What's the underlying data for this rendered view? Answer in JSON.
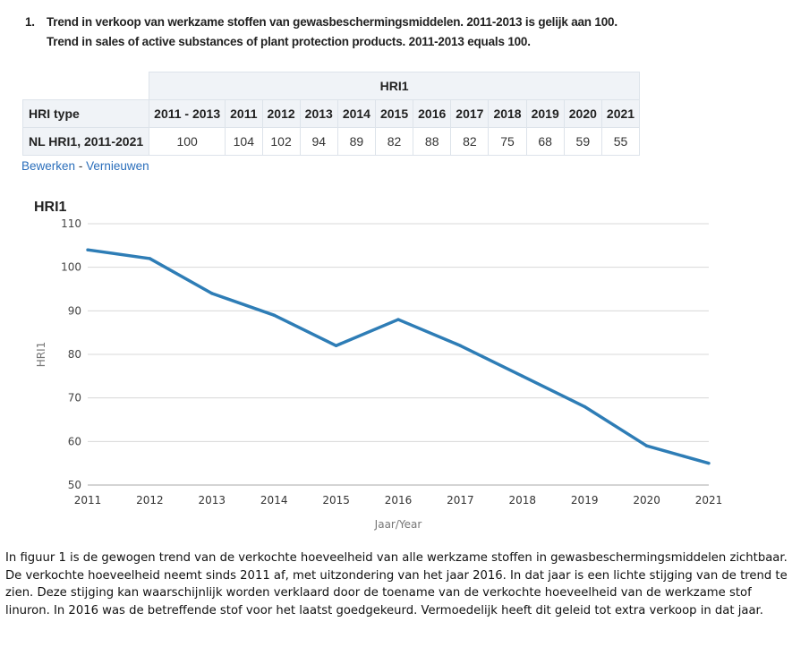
{
  "heading": {
    "number": "1.",
    "line_nl": "Trend in verkoop van werkzame stoffen van gewasbeschermingsmiddelen. 2011-2013 is gelijk aan 100.",
    "line_en": "Trend in sales of active substances of plant protection products. 2011-2013 equals 100."
  },
  "table": {
    "group_header": "HRI1",
    "row_header": "HRI type",
    "columns": [
      "2011 - 2013",
      "2011",
      "2012",
      "2013",
      "2014",
      "2015",
      "2016",
      "2017",
      "2018",
      "2019",
      "2020",
      "2021"
    ],
    "rows": [
      {
        "label": "NL HRI1, 2011-2021",
        "values": [
          "100",
          "104",
          "102",
          "94",
          "89",
          "82",
          "88",
          "82",
          "75",
          "68",
          "59",
          "55"
        ]
      }
    ]
  },
  "links": {
    "edit": "Bewerken",
    "separator": "-",
    "refresh": "Vernieuwen"
  },
  "chart_data": {
    "type": "line",
    "title": "HRI1",
    "xlabel": "Jaar/Year",
    "ylabel": "HRI1",
    "x": [
      2011,
      2012,
      2013,
      2014,
      2015,
      2016,
      2017,
      2018,
      2019,
      2020,
      2021
    ],
    "series": [
      {
        "values": [
          104,
          102,
          94,
          89,
          82,
          88,
          82,
          75,
          68,
          59,
          55
        ],
        "color": "#2e7db6"
      }
    ],
    "ylim": [
      50,
      110
    ],
    "yticks": [
      50,
      60,
      70,
      80,
      90,
      100,
      110
    ],
    "xlim": [
      2011,
      2021
    ],
    "grid": true
  },
  "paragraph": "In figuur 1 is de gewogen trend van de verkochte hoeveelheid van alle werkzame stoffen in gewasbeschermingsmiddelen zichtbaar. De verkochte hoeveelheid neemt sinds 2011 af, met uitzondering van het jaar 2016. In dat jaar is een lichte stijging van de trend te zien. Deze stijging kan waarschijnlijk worden verklaard door de toename van de verkochte hoeveelheid van de werkzame stof linuron. In 2016 was de betreffende stof voor het laatst goedgekeurd. Vermoedelijk heeft dit geleid tot extra verkoop in dat jaar."
}
